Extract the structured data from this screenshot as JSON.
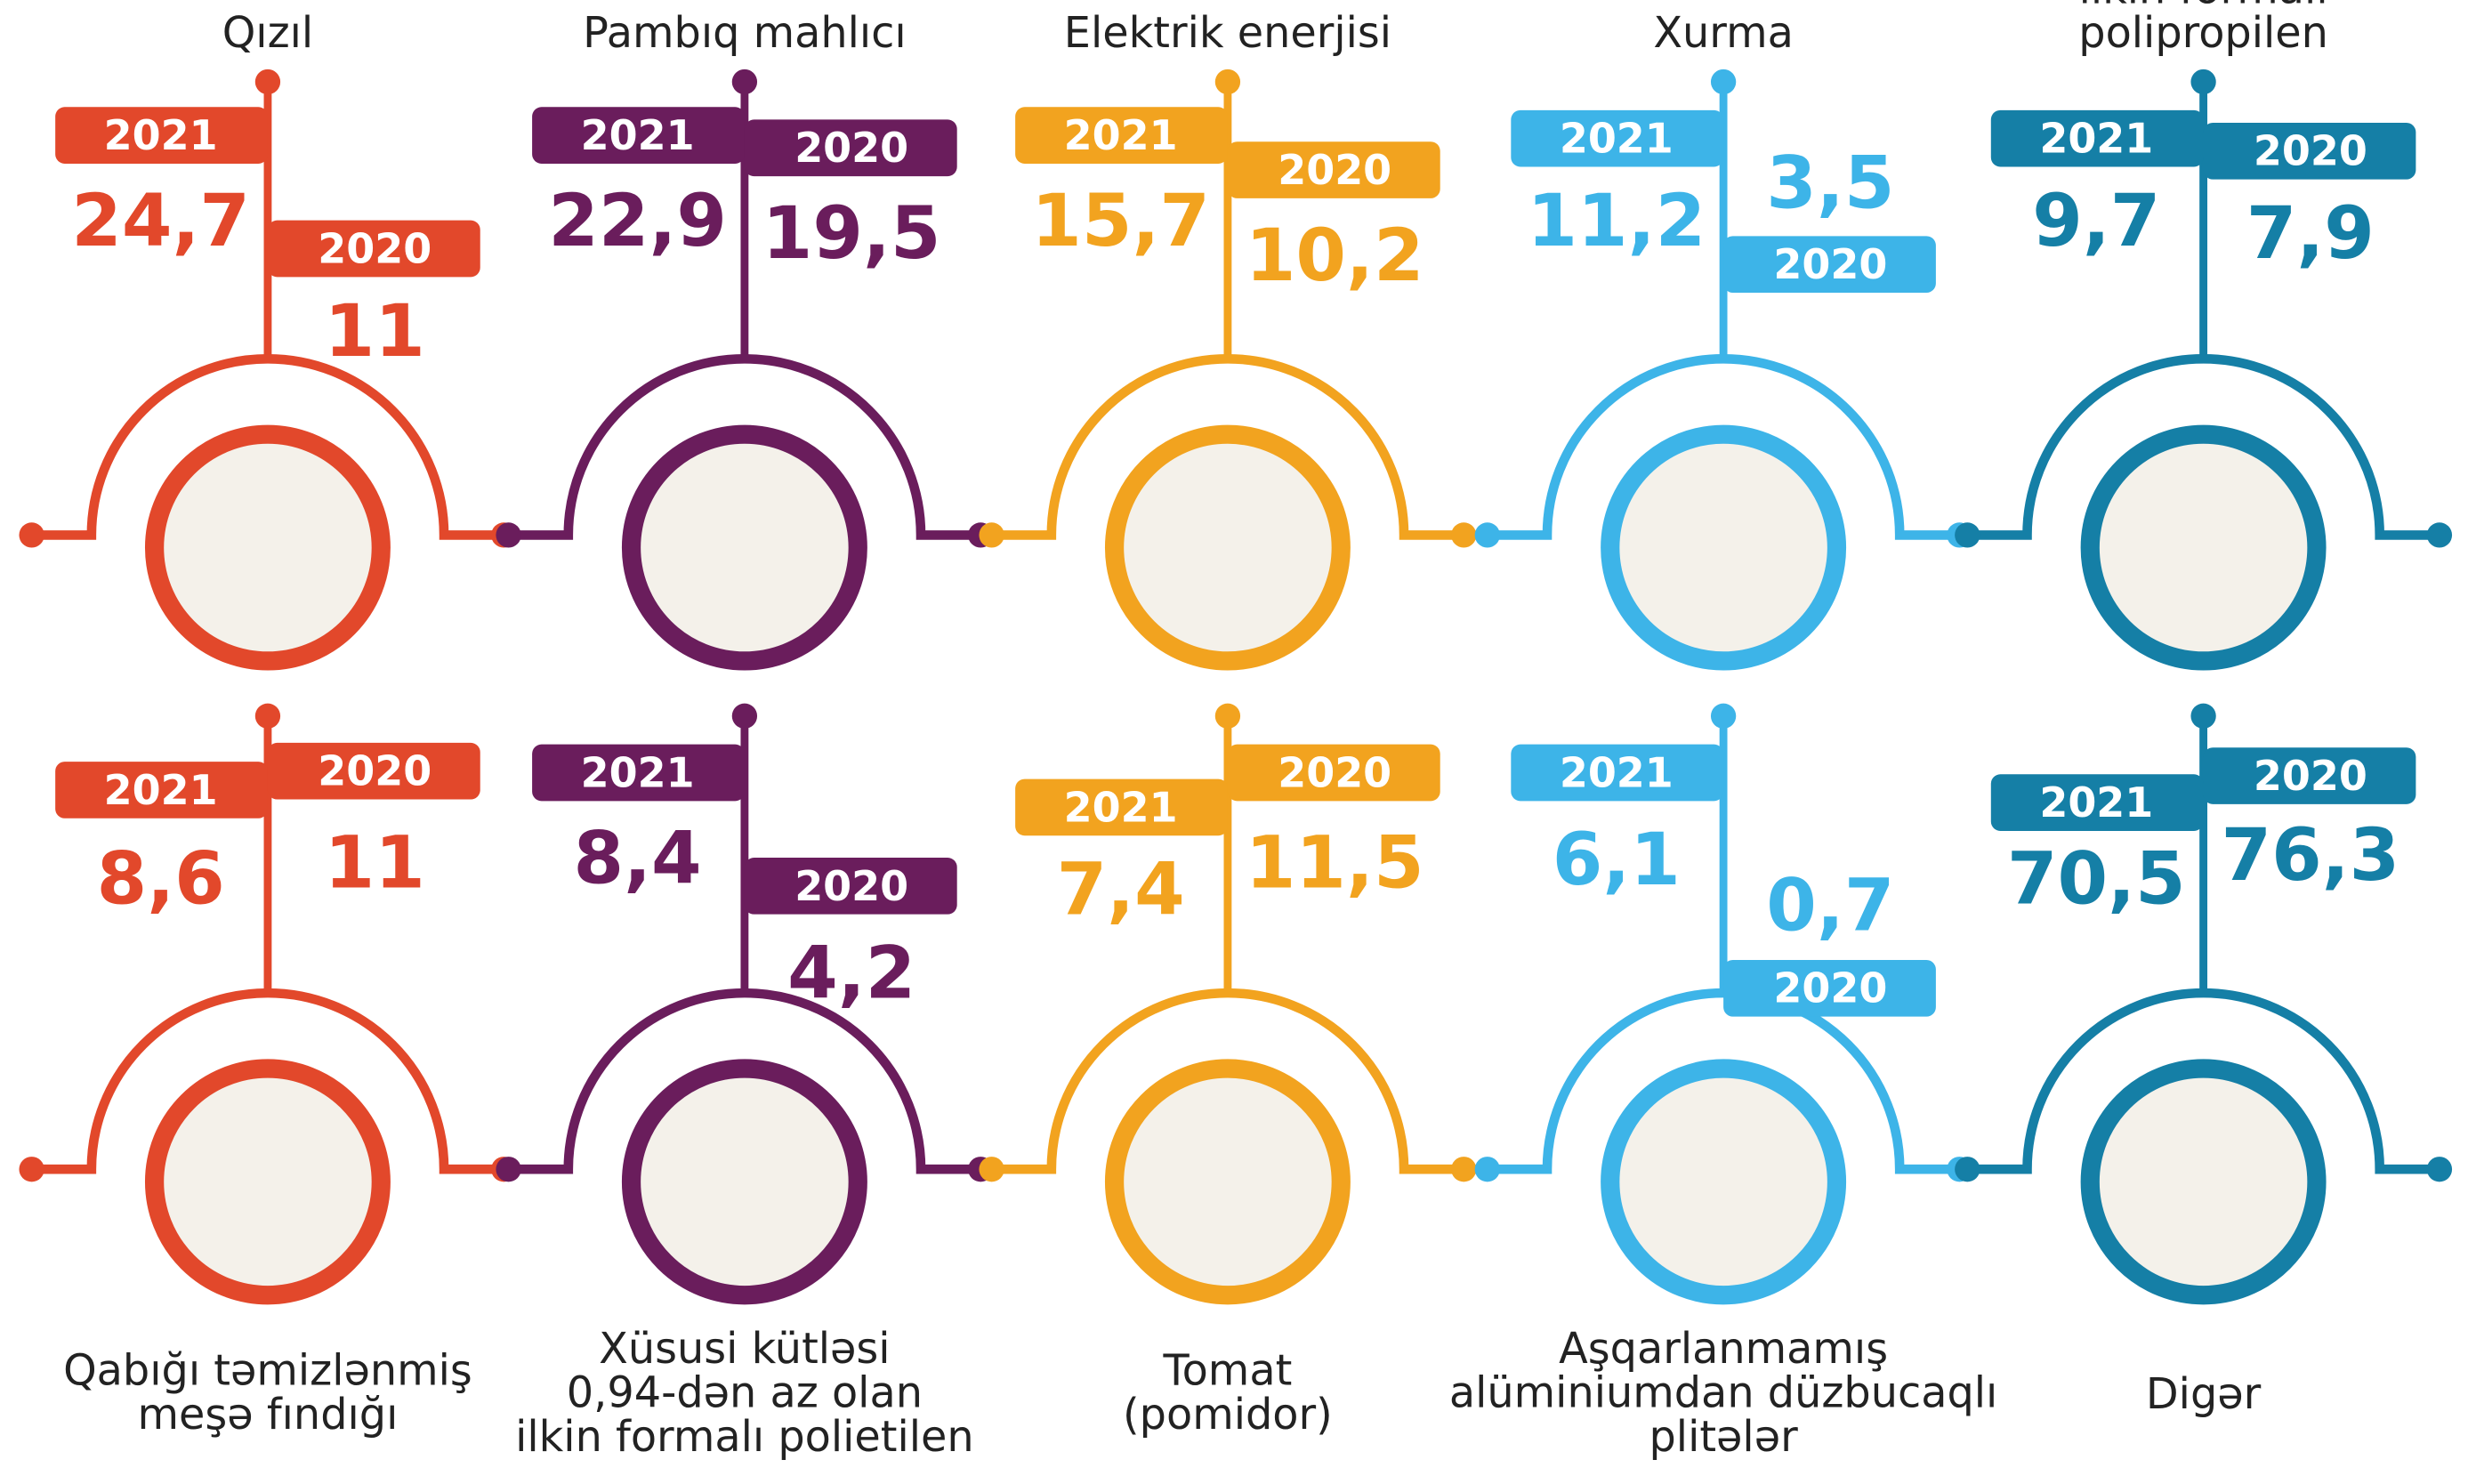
{
  "years": [
    "2021",
    "2020"
  ],
  "items": [
    {
      "label": [
        "Qızıl"
      ],
      "color": "#e2482b",
      "v2021": "24,7",
      "v2020": "11"
    },
    {
      "label": [
        "Pambıq mahlıcı"
      ],
      "color": "#6a1d5c",
      "v2021": "22,9",
      "v2020": "19,5"
    },
    {
      "label": [
        "Elektrik enerjisi"
      ],
      "color": "#f2a31f",
      "v2021": "15,7",
      "v2020": "10,2"
    },
    {
      "label": [
        "Xurma"
      ],
      "color": "#3db4e8",
      "v2021": "11,2",
      "v2020": "3,5"
    },
    {
      "label": [
        "ilkin formalı",
        "polipropilen"
      ],
      "color": "#157fa6",
      "v2021": "9,7",
      "v2020": "7,9"
    },
    {
      "label": [
        "Qabığı təmizlənmiş",
        "meşə fındığı"
      ],
      "color": "#e2482b",
      "v2021": "8,6",
      "v2020": "11"
    },
    {
      "label": [
        "Xüsusi kütləsi",
        "0,94-dən az olan",
        "ilkin formalı polietilen"
      ],
      "color": "#6a1d5c",
      "v2021": "8,4",
      "v2020": "4,2"
    },
    {
      "label": [
        "Tomat",
        "(pomidor)"
      ],
      "color": "#f2a31f",
      "v2021": "7,4",
      "v2020": "11,5"
    },
    {
      "label": [
        "Aşqarlanmamış",
        "alüminiumdan düzbucaqlı",
        "plitələr"
      ],
      "color": "#3db4e8",
      "v2021": "6,1",
      "v2020": "0,7"
    },
    {
      "label": [
        "Digər"
      ],
      "color": "#157fa6",
      "v2021": "70,5",
      "v2020": "76,3"
    }
  ]
}
